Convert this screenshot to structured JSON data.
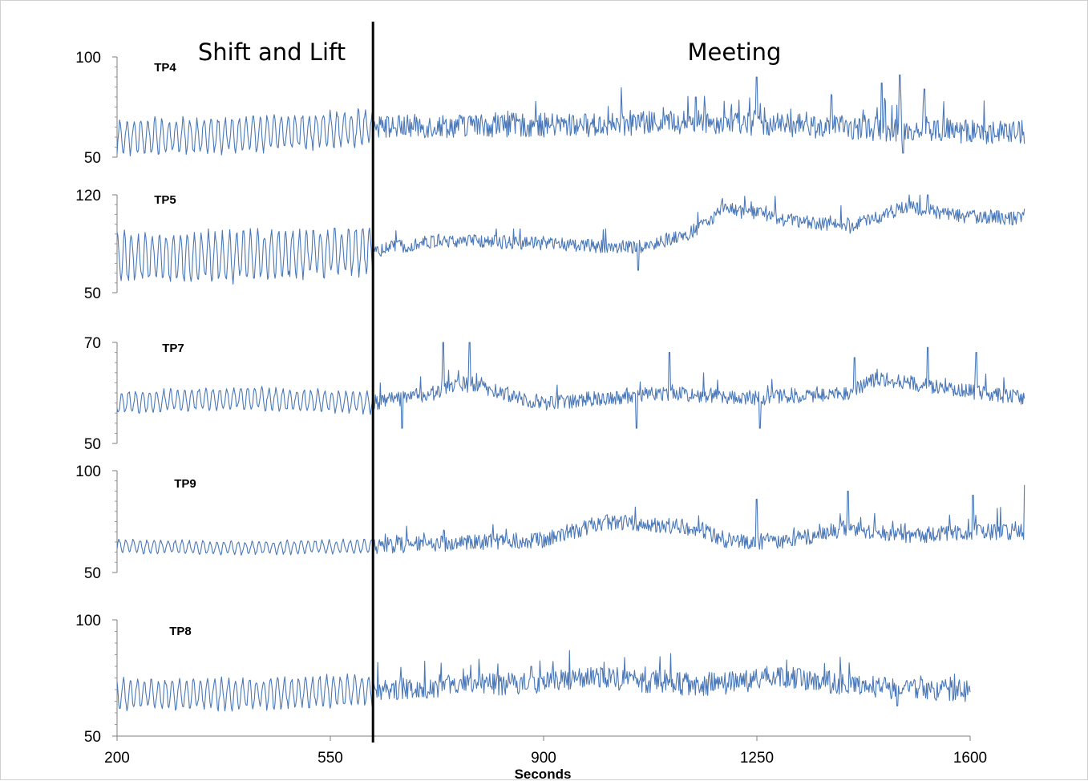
{
  "chart_data": {
    "type": "line",
    "xlabel": "Seconds",
    "xlim": [
      200,
      1600
    ],
    "xticks": [
      200,
      550,
      900,
      1250,
      1600
    ],
    "annotations": {
      "phase_divider_x": 620,
      "phase_left": "Shift and Lift",
      "phase_right": "Meeting"
    },
    "line_color": "#4a78b8",
    "series": [
      {
        "name": "TP4",
        "ylim": [
          50,
          100
        ],
        "yticks": [
          50,
          100
        ],
        "x_end": 1690,
        "profile": [
          [
            200,
            60
          ],
          [
            400,
            61
          ],
          [
            620,
            65
          ],
          [
            800,
            66
          ],
          [
            1000,
            66
          ],
          [
            1150,
            68
          ],
          [
            1300,
            66
          ],
          [
            1450,
            64
          ],
          [
            1690,
            62
          ]
        ],
        "amp_left": 8,
        "amp_right": 6,
        "peaks": [
          [
            1150,
            80
          ],
          [
            1250,
            90
          ],
          [
            1455,
            87
          ],
          [
            1485,
            91
          ],
          [
            1525,
            84
          ]
        ],
        "drops": [
          [
            1490,
            52
          ]
        ]
      },
      {
        "name": "TP5",
        "ylim": [
          50,
          120
        ],
        "yticks": [
          50,
          120
        ],
        "x_end": 1690,
        "profile": [
          [
            200,
            75
          ],
          [
            400,
            76
          ],
          [
            620,
            80
          ],
          [
            700,
            86
          ],
          [
            800,
            87
          ],
          [
            950,
            84
          ],
          [
            1050,
            82
          ],
          [
            1130,
            90
          ],
          [
            1200,
            110
          ],
          [
            1300,
            102
          ],
          [
            1400,
            97
          ],
          [
            1500,
            112
          ],
          [
            1580,
            105
          ],
          [
            1690,
            103
          ]
        ],
        "amp_left": 16,
        "amp_right": 5,
        "peaks": [
          [
            1230,
            119
          ],
          [
            1280,
            119
          ],
          [
            1500,
            120
          ],
          [
            1530,
            120
          ]
        ],
        "drops": [
          [
            1055,
            66
          ]
        ]
      },
      {
        "name": "TP7",
        "ylim": [
          50,
          70
        ],
        "yticks": [
          50,
          70
        ],
        "x_end": 1690,
        "profile": [
          [
            200,
            58
          ],
          [
            400,
            59
          ],
          [
            620,
            58
          ],
          [
            720,
            60
          ],
          [
            760,
            62
          ],
          [
            900,
            58
          ],
          [
            1000,
            59
          ],
          [
            1100,
            60
          ],
          [
            1250,
            59
          ],
          [
            1400,
            60
          ],
          [
            1450,
            63
          ],
          [
            1550,
            61
          ],
          [
            1690,
            59
          ]
        ],
        "amp_left": 2,
        "amp_right": 1.5,
        "peaks": [
          [
            735,
            70
          ],
          [
            778,
            70
          ],
          [
            1107,
            68
          ],
          [
            1410,
            67
          ],
          [
            1530,
            69
          ],
          [
            1610,
            68
          ]
        ],
        "drops": [
          [
            668,
            53
          ],
          [
            1052,
            53
          ],
          [
            1255,
            53
          ]
        ]
      },
      {
        "name": "TP9",
        "ylim": [
          50,
          100
        ],
        "yticks": [
          50,
          100
        ],
        "x_end": 1690,
        "profile": [
          [
            200,
            63
          ],
          [
            400,
            62
          ],
          [
            620,
            63
          ],
          [
            900,
            66
          ],
          [
            1000,
            75
          ],
          [
            1150,
            72
          ],
          [
            1200,
            66
          ],
          [
            1300,
            65
          ],
          [
            1400,
            72
          ],
          [
            1500,
            68
          ],
          [
            1600,
            70
          ],
          [
            1690,
            70
          ]
        ],
        "amp_left": 3,
        "amp_right": 4,
        "peaks": [
          [
            1250,
            86
          ],
          [
            1400,
            90
          ],
          [
            1650,
            82
          ],
          [
            1690,
            93
          ],
          [
            1605,
            88
          ]
        ],
        "drops": []
      },
      {
        "name": "TP8",
        "ylim": [
          50,
          100
        ],
        "yticks": [
          50,
          100
        ],
        "x_end": 1600,
        "profile": [
          [
            200,
            68
          ],
          [
            400,
            68
          ],
          [
            620,
            70
          ],
          [
            800,
            72
          ],
          [
            1000,
            75
          ],
          [
            1150,
            72
          ],
          [
            1300,
            75
          ],
          [
            1450,
            71
          ],
          [
            1600,
            69
          ]
        ],
        "amp_left": 6,
        "amp_right": 5,
        "peaks": [
          [
            880,
            80
          ],
          [
            1320,
            79
          ]
        ],
        "drops": [
          [
            1480,
            63
          ]
        ]
      }
    ]
  }
}
